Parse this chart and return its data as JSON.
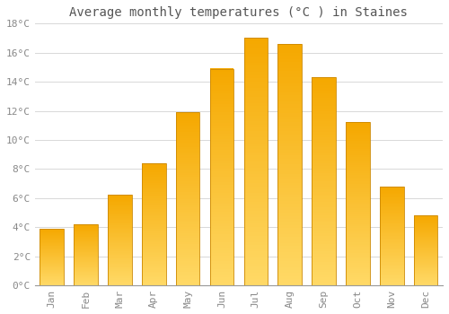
{
  "title": "Average monthly temperatures (°C ) in Staines",
  "months": [
    "Jan",
    "Feb",
    "Mar",
    "Apr",
    "May",
    "Jun",
    "Jul",
    "Aug",
    "Sep",
    "Oct",
    "Nov",
    "Dec"
  ],
  "values": [
    3.9,
    4.2,
    6.2,
    8.4,
    11.9,
    14.9,
    17.0,
    16.6,
    14.3,
    11.2,
    6.8,
    4.8
  ],
  "bar_color_top": "#F5A800",
  "bar_color_bottom": "#FFD966",
  "bar_edge_color": "#CC8800",
  "background_color": "#FFFFFF",
  "grid_color": "#D8D8D8",
  "title_color": "#555555",
  "tick_color": "#888888",
  "ylim": [
    0,
    18
  ],
  "yticks": [
    0,
    2,
    4,
    6,
    8,
    10,
    12,
    14,
    16,
    18
  ],
  "ytick_labels": [
    "0°C",
    "2°C",
    "4°C",
    "6°C",
    "8°C",
    "10°C",
    "12°C",
    "14°C",
    "16°C",
    "18°C"
  ],
  "title_fontsize": 10,
  "tick_fontsize": 8,
  "font_family": "monospace",
  "bar_width": 0.7
}
